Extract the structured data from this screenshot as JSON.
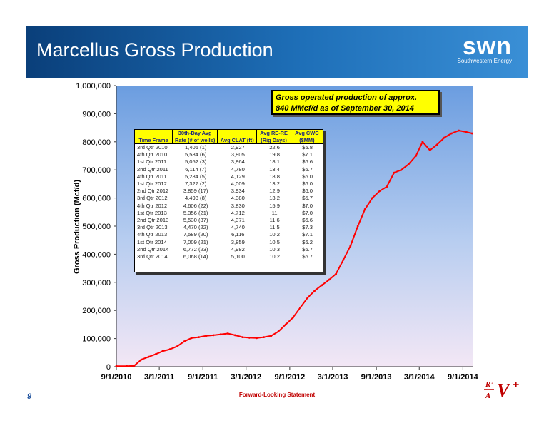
{
  "slide": {
    "title": "Marcellus Gross Production",
    "page_number": "9",
    "footer": "Forward-Looking Statement",
    "logo_word": "swn",
    "logo_sub": "Southwestern Energy"
  },
  "colors": {
    "header_start": "#0a3f7a",
    "header_end": "#3a8fd6",
    "series": "#ff0000",
    "callout_bg": "#ffff00",
    "table_header_bg": "#ffff00"
  },
  "callout": {
    "line1": "Gross operated production of approx.",
    "line2": "840 MMcf/d as of September 30, 2014"
  },
  "table": {
    "headers": [
      {
        "top": "",
        "bottom": "Time Frame"
      },
      {
        "top": "30th-Day Avg",
        "bottom": "Rate (# of wells)"
      },
      {
        "top": "",
        "bottom": "Avg CLAT (ft)"
      },
      {
        "top": "Avg RE-RE",
        "bottom": "(Rig Days)"
      },
      {
        "top": "Avg CWC",
        "bottom": "($MM)"
      }
    ],
    "rows": [
      [
        "3rd Qtr 2010",
        "1,405 (1)",
        "2,927",
        "22.6",
        "$5.8"
      ],
      [
        "4th Qtr 2010",
        "5,584 (6)",
        "3,805",
        "19.8",
        "$7.1"
      ],
      [
        "1st Qtr 2011",
        "5,052 (3)",
        "3,864",
        "18.1",
        "$6.6"
      ],
      [
        "2nd Qtr 2011",
        "6,114 (7)",
        "4,780",
        "13.4",
        "$6.7"
      ],
      [
        "4th Qtr 2011",
        "5,284 (5)",
        "4,129",
        "18.8",
        "$6.0"
      ],
      [
        "1st Qtr 2012",
        "7,327 (2)",
        "4,009",
        "13.2",
        "$6.0"
      ],
      [
        "2nd Qtr 2012",
        "3,859 (17)",
        "3,934",
        "12.9",
        "$6.0"
      ],
      [
        "3rd Qtr 2012",
        "4,493 (8)",
        "4,380",
        "13.2",
        "$5.7"
      ],
      [
        "4th Qtr 2012",
        "4,606 (22)",
        "3,830",
        "15.9",
        "$7.0"
      ],
      [
        "1st Qtr 2013",
        "5,356 (21)",
        "4,712",
        "11",
        "$7.0"
      ],
      [
        "2nd Qtr 2013",
        "5,530 (37)",
        "4,371",
        "11.6",
        "$6.6"
      ],
      [
        "3rd Qtr 2013",
        "4,470 (22)",
        "4,740",
        "11.5",
        "$7.3"
      ],
      [
        "4th Qtr 2013",
        "7,589 (20)",
        "6,116",
        "10.2",
        "$7.1"
      ],
      [
        "1st Qtr 2014",
        "7,009 (21)",
        "3,859",
        "10.5",
        "$6.2"
      ],
      [
        "2nd Qtr 2014",
        "6,772 (23)",
        "4,982",
        "10.3",
        "$6.7"
      ],
      [
        "3rd Qtr 2014",
        "6,068 (14)",
        "5,100",
        "10.2",
        "$6.7"
      ]
    ]
  },
  "chart_data": {
    "type": "line",
    "title": "",
    "xlabel": "",
    "ylabel": "Gross Production (Mcf/d)",
    "ylim": [
      0,
      1000000
    ],
    "xlim": [
      "2010-09-01",
      "2014-10-15"
    ],
    "y_ticks": [
      "0",
      "100,000",
      "200,000",
      "300,000",
      "400,000",
      "500,000",
      "600,000",
      "700,000",
      "800,000",
      "900,000",
      "1,000,000"
    ],
    "x_ticks": [
      "9/1/2010",
      "3/1/2011",
      "9/1/2011",
      "3/1/2012",
      "9/1/2012",
      "3/1/2013",
      "9/1/2013",
      "3/1/2014",
      "9/1/2014"
    ],
    "grid": false,
    "series": [
      {
        "name": "",
        "x": [
          "2010-09-01",
          "2010-10-15",
          "2010-11-15",
          "2010-12-15",
          "2011-01-15",
          "2011-02-15",
          "2011-03-15",
          "2011-04-15",
          "2011-05-15",
          "2011-06-15",
          "2011-07-15",
          "2011-08-15",
          "2011-09-15",
          "2011-10-15",
          "2011-11-15",
          "2011-12-15",
          "2012-01-15",
          "2012-02-15",
          "2012-03-15",
          "2012-04-15",
          "2012-05-15",
          "2012-06-15",
          "2012-07-15",
          "2012-08-15",
          "2012-09-15",
          "2012-10-15",
          "2012-11-15",
          "2012-12-15",
          "2013-01-15",
          "2013-02-15",
          "2013-03-15",
          "2013-04-15",
          "2013-05-15",
          "2013-06-15",
          "2013-07-15",
          "2013-08-15",
          "2013-09-15",
          "2013-10-15",
          "2013-11-15",
          "2013-12-15",
          "2014-01-15",
          "2014-02-15",
          "2014-03-15",
          "2014-04-15",
          "2014-05-15",
          "2014-06-15",
          "2014-07-15",
          "2014-08-15",
          "2014-09-15",
          "2014-10-10"
        ],
        "values": [
          2000,
          2000,
          3000,
          25000,
          35000,
          45000,
          55000,
          62000,
          72000,
          90000,
          102000,
          105000,
          110000,
          112000,
          115000,
          118000,
          112000,
          105000,
          103000,
          102000,
          105000,
          110000,
          125000,
          150000,
          175000,
          210000,
          245000,
          270000,
          290000,
          310000,
          330000,
          380000,
          430000,
          500000,
          560000,
          600000,
          625000,
          640000,
          690000,
          700000,
          720000,
          750000,
          800000,
          770000,
          790000,
          815000,
          830000,
          840000,
          835000,
          830000
        ]
      }
    ]
  }
}
